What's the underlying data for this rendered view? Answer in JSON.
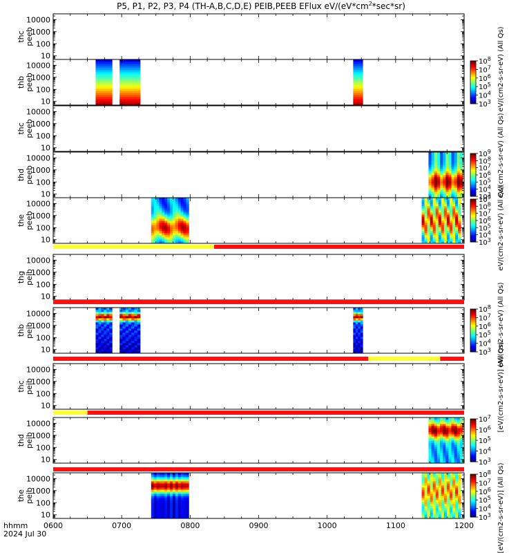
{
  "title_line": {
    "main": "P5, P1, P2, P3, P4 (TH-A,B,C,D,E) PEIB,PEEB EFlux eV/(eV*cm",
    "sup": "2",
    "tail": "*sec*sr)"
  },
  "time_axis": {
    "label_line1": "hhmm",
    "label_line2": "2024 Jul 30",
    "ticks": [
      "0600",
      "0700",
      "0800",
      "0900",
      "1000",
      "1100",
      "1200"
    ],
    "range_hours": [
      6,
      12
    ]
  },
  "y_ticks": [
    "10000",
    "1000",
    "100",
    "10"
  ],
  "colorbar_labels": {
    "electron": "eV/(cm2-s-sr-eV) (All Qs)",
    "ion": "[eV/(cm2-s-sr-eV)] (All Qs)",
    "ion_alt": "eV/(cm2-s-sr-eV) (All Qs)"
  },
  "colors": {
    "flag_yellow": "#ffff33",
    "flag_red": "#ff1111",
    "axis": "#000000",
    "background": "#ffffff"
  },
  "chart_data": {
    "type": "heatmap",
    "description_units": "energy spectrogram, energy in eV (log scale 10 to ~20000), time in hours UT",
    "ylim": [
      5,
      30000
    ],
    "yscale": "log",
    "panels": [
      {
        "probe": "thc",
        "product": "peeb",
        "label1": "thc",
        "label2": "peeb",
        "intervals": [],
        "colorbar": null
      },
      {
        "probe": "thb",
        "product": "peeb",
        "label1": "thb",
        "label2": "peeb",
        "intervals": [
          [
            6.62,
            6.86,
            "electron"
          ],
          [
            6.97,
            7.27,
            "electron"
          ],
          [
            10.38,
            10.52,
            "electron"
          ]
        ],
        "colorbar": {
          "exponents": [
            "3",
            "4",
            "5",
            "6",
            "7",
            "8"
          ]
        }
      },
      {
        "probe": "thc",
        "product": "peeb",
        "label1": "thc",
        "label2": "peeb",
        "intervals": [],
        "colorbar": null
      },
      {
        "probe": "thd",
        "product": "peeb",
        "label1": "thd",
        "label2": "peeb",
        "intervals": [
          [
            11.48,
            11.98,
            "plasma_d"
          ]
        ],
        "colorbar": {
          "exponents": [
            "3",
            "4",
            "5",
            "6",
            "7",
            "8",
            "9"
          ]
        }
      },
      {
        "probe": "the",
        "product": "peeb",
        "label1": "the",
        "label2": "peeb",
        "intervals": [
          [
            7.43,
            7.98,
            "plasma_e"
          ],
          [
            11.38,
            11.95,
            "plasma_e2"
          ]
        ],
        "colorbar": {
          "exponents": [
            "3",
            "4",
            "5",
            "6",
            "7",
            "8",
            "9"
          ]
        }
      },
      {
        "probe": "thg",
        "product": "peib",
        "label1": "thg",
        "label2": "peib",
        "intervals": [],
        "colorbar": null
      },
      {
        "probe": "thb",
        "product": "peib",
        "label1": "thb",
        "label2": "peib",
        "intervals": [
          [
            6.62,
            6.86,
            "ion"
          ],
          [
            6.97,
            7.27,
            "ion"
          ],
          [
            10.38,
            10.52,
            "ion"
          ]
        ],
        "colorbar": {
          "exponents": [
            "3",
            "4",
            "5",
            "6",
            "7",
            "8"
          ]
        }
      },
      {
        "probe": "thc",
        "product": "peib",
        "label1": "thc",
        "label2": "peib",
        "intervals": [],
        "colorbar": null
      },
      {
        "probe": "thd",
        "product": "peib",
        "label1": "thd",
        "label2": "peib",
        "intervals": [
          [
            11.48,
            11.98,
            "ion_hot"
          ]
        ],
        "colorbar": {
          "exponents": [
            "3",
            "4",
            "5",
            "6",
            "7"
          ]
        }
      },
      {
        "probe": "the",
        "product": "peib",
        "label1": "the",
        "label2": "peib",
        "intervals": [
          [
            7.43,
            7.98,
            "ion_hot2"
          ],
          [
            11.38,
            11.95,
            "ion_mix"
          ]
        ],
        "colorbar": {
          "exponents": [
            "3",
            "4",
            "5",
            "6",
            "7",
            "8"
          ]
        }
      }
    ],
    "flag_bars": [
      {
        "after_panel": 4,
        "segments": [
          [
            6.0,
            8.35,
            "yellow"
          ],
          [
            8.35,
            12.0,
            "red"
          ]
        ]
      },
      {
        "after_panel": 5,
        "segments": [
          [
            6.0,
            12.0,
            "red"
          ]
        ]
      },
      {
        "after_panel": 6,
        "segments": [
          [
            6.0,
            10.6,
            "red"
          ],
          [
            10.6,
            11.65,
            "yellow"
          ],
          [
            11.65,
            12.0,
            "red"
          ]
        ]
      },
      {
        "after_panel": 7,
        "segments": [
          [
            6.0,
            6.5,
            "yellow"
          ],
          [
            6.5,
            12.0,
            "red"
          ]
        ]
      },
      {
        "after_panel": 8,
        "segments": [
          [
            6.0,
            12.0,
            "red"
          ]
        ]
      }
    ]
  }
}
